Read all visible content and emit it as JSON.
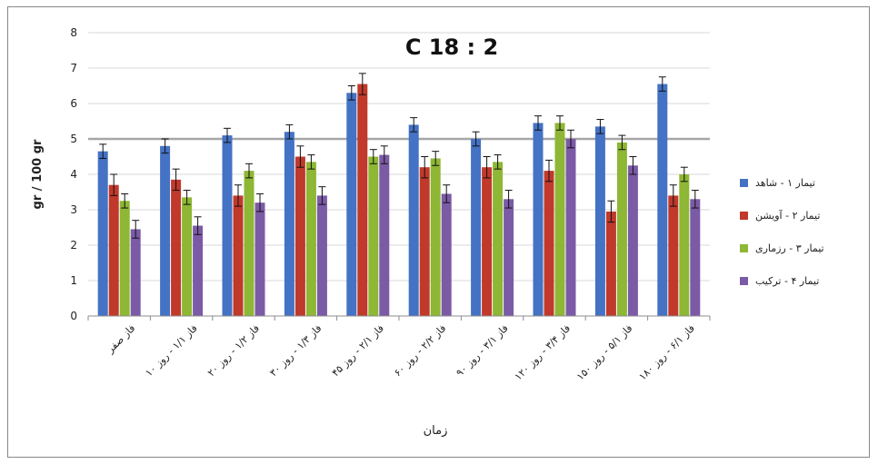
{
  "chart_data": {
    "type": "bar",
    "title": "C 18 : 2",
    "xlabel": "زمان",
    "ylabel": "gr / 100 gr",
    "ylim": [
      0,
      8
    ],
    "yticks": [
      0,
      1,
      2,
      3,
      4,
      5,
      6,
      7,
      8
    ],
    "grid": true,
    "legend_position": "right",
    "reference_line": 5,
    "categories": [
      "فاز صفر",
      "فاز ۱/۱ - روز ۱۰",
      "فاز ۱/۲ - روز ۲۰",
      "فاز ۱/۳ - روز ۳۰",
      "فاز ۲/۱ - روز ۴۵",
      "فاز ۲/۲ - روز ۶۰",
      "فاز ۳/۱ - روز ۹۰",
      "فاز ۳/۴ - روز ۱۲۰",
      "فاز ۵/۱ - روز ۱۵۰",
      "فاز ۶/۱ - روز ۱۸۰"
    ],
    "series": [
      {
        "name": "تیمار ۱ - شاهد",
        "color": "#4472C4",
        "values": [
          4.65,
          4.8,
          5.1,
          5.2,
          6.3,
          5.4,
          5.0,
          5.45,
          5.35,
          6.55
        ],
        "errors": [
          0.2,
          0.2,
          0.2,
          0.2,
          0.2,
          0.2,
          0.2,
          0.2,
          0.2,
          0.2
        ]
      },
      {
        "name": "تیمار ۲ - آویشن",
        "color": "#C0392B",
        "values": [
          3.7,
          3.85,
          3.4,
          4.5,
          6.55,
          4.2,
          4.2,
          4.1,
          2.95,
          3.4
        ],
        "errors": [
          0.3,
          0.3,
          0.3,
          0.3,
          0.3,
          0.3,
          0.3,
          0.3,
          0.3,
          0.3
        ]
      },
      {
        "name": "تیمار ۳ - رزماری",
        "color": "#8DB734",
        "values": [
          3.25,
          3.35,
          4.1,
          4.35,
          4.5,
          4.45,
          4.35,
          5.45,
          4.9,
          4.0
        ],
        "errors": [
          0.2,
          0.2,
          0.2,
          0.2,
          0.2,
          0.2,
          0.2,
          0.2,
          0.2,
          0.2
        ]
      },
      {
        "name": "تیمار ۴ - ترکیب",
        "color": "#7B5AA6",
        "values": [
          2.45,
          2.55,
          3.2,
          3.4,
          4.55,
          3.45,
          3.3,
          5.0,
          4.25,
          3.3
        ],
        "errors": [
          0.25,
          0.25,
          0.25,
          0.25,
          0.25,
          0.25,
          0.25,
          0.25,
          0.25,
          0.25
        ]
      }
    ]
  }
}
